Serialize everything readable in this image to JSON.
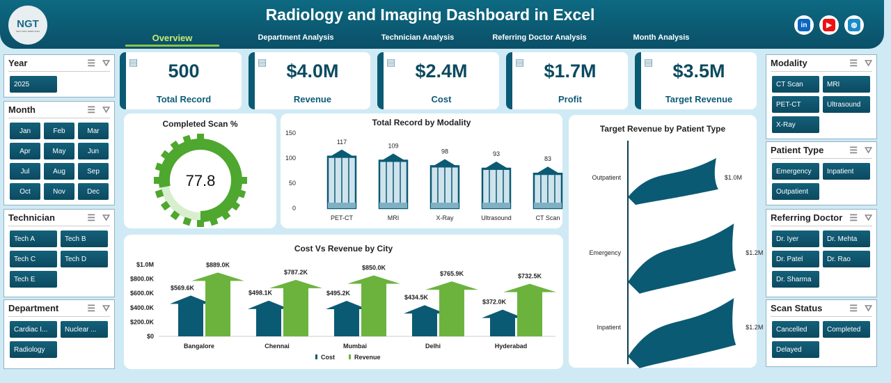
{
  "header": {
    "logo": "NGT",
    "logo_sub": "NEXT GEN TEMPLATES",
    "title": "Radiology and Imaging Dashboard in Excel",
    "tabs": [
      {
        "label": "Overview",
        "active": true
      },
      {
        "label": "Department Analysis"
      },
      {
        "label": "Technician Analysis"
      },
      {
        "label": "Referring Doctor Analysis"
      },
      {
        "label": "Month Analysis"
      }
    ],
    "social": [
      {
        "icon": "linkedin-icon",
        "glyph": "in",
        "color": "#0a66c2"
      },
      {
        "icon": "youtube-icon",
        "glyph": "▶",
        "color": "#e11"
      },
      {
        "icon": "globe-icon",
        "glyph": "◍",
        "color": "#1a8ac8"
      }
    ]
  },
  "slicers_left": [
    {
      "title": "Year",
      "items": [
        "2025"
      ]
    },
    {
      "title": "Month",
      "items": [
        "Jan",
        "Feb",
        "Mar",
        "Apr",
        "May",
        "Jun",
        "Jul",
        "Aug",
        "Sep",
        "Oct",
        "Nov",
        "Dec"
      ]
    },
    {
      "title": "Technician",
      "items": [
        "Tech A",
        "Tech B",
        "Tech C",
        "Tech D",
        "Tech E"
      ]
    },
    {
      "title": "Department",
      "items": [
        "Cardiac I...",
        "Nuclear ...",
        "Radiology"
      ]
    }
  ],
  "slicers_right": [
    {
      "title": "Modality",
      "items": [
        "CT Scan",
        "MRI",
        "PET-CT",
        "Ultrasound",
        "X-Ray"
      ]
    },
    {
      "title": "Patient Type",
      "items": [
        "Emergency",
        "Inpatient",
        "Outpatient"
      ]
    },
    {
      "title": "Referring Doctor",
      "items": [
        "Dr. Iyer",
        "Dr. Mehta",
        "Dr. Patel",
        "Dr. Rao",
        "Dr. Sharma"
      ]
    },
    {
      "title": "Scan Status",
      "items": [
        "Cancelled",
        "Completed",
        "Delayed"
      ]
    }
  ],
  "kpis": [
    {
      "value": "500",
      "label": "Total Record",
      "icon": "clipboard-icon"
    },
    {
      "value": "$4.0M",
      "label": "Revenue",
      "icon": "revenue-chart-icon"
    },
    {
      "value": "$2.4M",
      "label": "Cost",
      "icon": "money-icon"
    },
    {
      "value": "$1.7M",
      "label": "Profit",
      "icon": "money-bag-icon"
    },
    {
      "value": "$3.5M",
      "label": "Target Revenue",
      "icon": "target-icon"
    }
  ],
  "chart_data": [
    {
      "type": "doughnut",
      "title": "Completed Scan %",
      "value": 77.8,
      "label": "77.8",
      "colors": [
        "#4ea72e",
        "#d8efcf"
      ]
    },
    {
      "type": "bar",
      "title": "Total Record by Modality",
      "categories": [
        "PET-CT",
        "MRI",
        "X-Ray",
        "Ultrasound",
        "CT Scan"
      ],
      "values": [
        117,
        109,
        98,
        93,
        83
      ],
      "ylim": [
        0,
        150
      ],
      "yticks": [
        "0",
        "50",
        "100",
        "150"
      ],
      "color": "#0b5a73"
    },
    {
      "type": "bar",
      "title": "Cost Vs Revenue by City",
      "categories": [
        "Bangalore",
        "Chennai",
        "Mumbai",
        "Delhi",
        "Hyderabad"
      ],
      "ylim": [
        0,
        1000000
      ],
      "yticks": [
        "$0",
        "$200.0K",
        "$400.0K",
        "$600.0K",
        "$800.0K",
        "$1.0M"
      ],
      "legend": "bottom",
      "series": [
        {
          "name": "Cost",
          "values": [
            569600,
            498100,
            495200,
            434500,
            372000
          ],
          "labels": [
            "$569.6K",
            "$498.1K",
            "$495.2K",
            "$434.5K",
            "$372.0K"
          ],
          "color": "#0b5a73"
        },
        {
          "name": "Revenue",
          "values": [
            889000,
            787200,
            850000,
            765900,
            732500
          ],
          "labels": [
            "$889.0K",
            "$787.2K",
            "$850.0K",
            "$765.9K",
            "$732.5K"
          ],
          "color": "#6cb33e"
        }
      ]
    },
    {
      "type": "bar",
      "orientation": "horizontal",
      "title": "Target Revenue by Patient Type",
      "categories": [
        "Outpatient",
        "Emergency",
        "Inpatient"
      ],
      "values": [
        1.0,
        1.2,
        1.2
      ],
      "labels": [
        "$1.0M",
        "$1.2M",
        "$1.2M"
      ],
      "color": "#0b5a73"
    }
  ]
}
